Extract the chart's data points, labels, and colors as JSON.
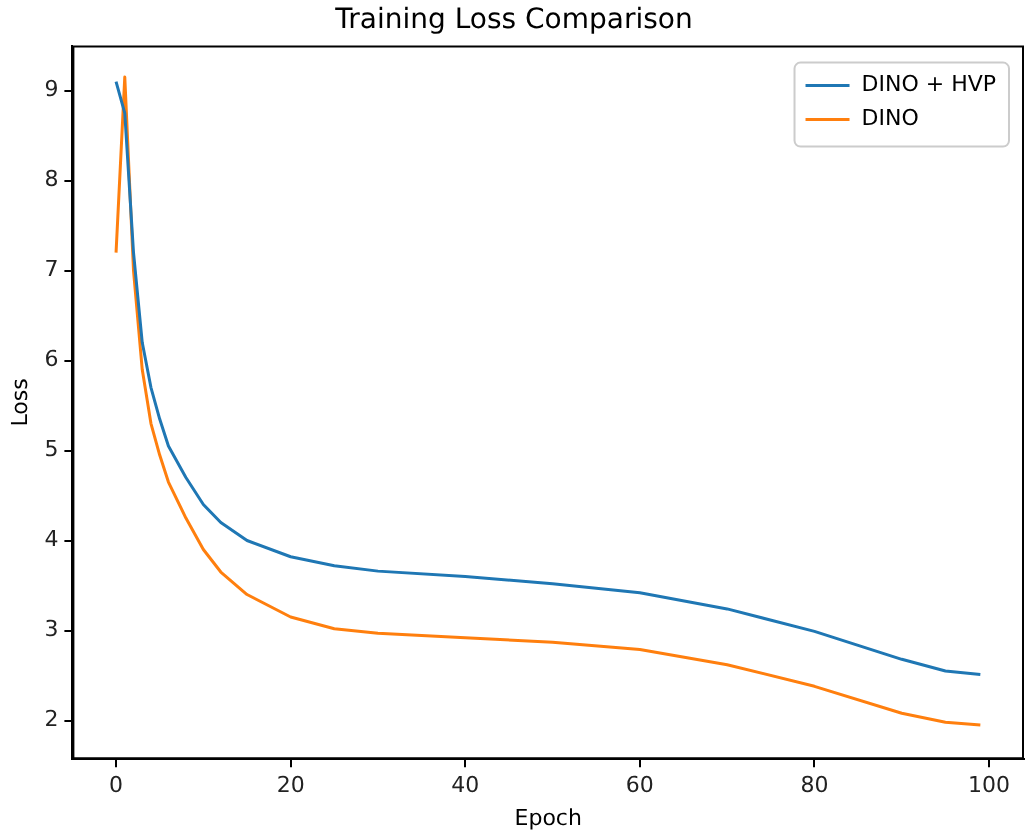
{
  "chart_data": {
    "type": "line",
    "title": "Training Loss Comparison",
    "xlabel": "Epoch",
    "ylabel": "Loss",
    "x": [
      0,
      1,
      2,
      3,
      4,
      5,
      6,
      8,
      10,
      12,
      15,
      20,
      25,
      30,
      40,
      50,
      60,
      70,
      80,
      90,
      95,
      99
    ],
    "series": [
      {
        "name": "DINO + HVP",
        "color": "#1f77b4",
        "values": [
          9.1,
          8.75,
          7.2,
          6.2,
          5.7,
          5.35,
          5.05,
          4.7,
          4.4,
          4.2,
          4.0,
          3.82,
          3.72,
          3.66,
          3.6,
          3.52,
          3.42,
          3.24,
          2.99,
          2.68,
          2.55,
          2.51
        ]
      },
      {
        "name": "DINO",
        "color": "#ff7f0e",
        "values": [
          7.2,
          9.15,
          7.0,
          5.9,
          5.3,
          4.95,
          4.65,
          4.25,
          3.9,
          3.65,
          3.4,
          3.15,
          3.02,
          2.97,
          2.92,
          2.87,
          2.79,
          2.62,
          2.38,
          2.08,
          1.98,
          1.95
        ]
      }
    ],
    "xlim": [
      -5,
      104
    ],
    "xticks": [
      0,
      20,
      40,
      60,
      80,
      100
    ],
    "ylim": [
      1.57,
      9.5
    ],
    "yticks": [
      2,
      3,
      4,
      5,
      6,
      7,
      8,
      9
    ],
    "grid": false,
    "legend": "top right",
    "marker": "none",
    "line_style": "solid"
  }
}
